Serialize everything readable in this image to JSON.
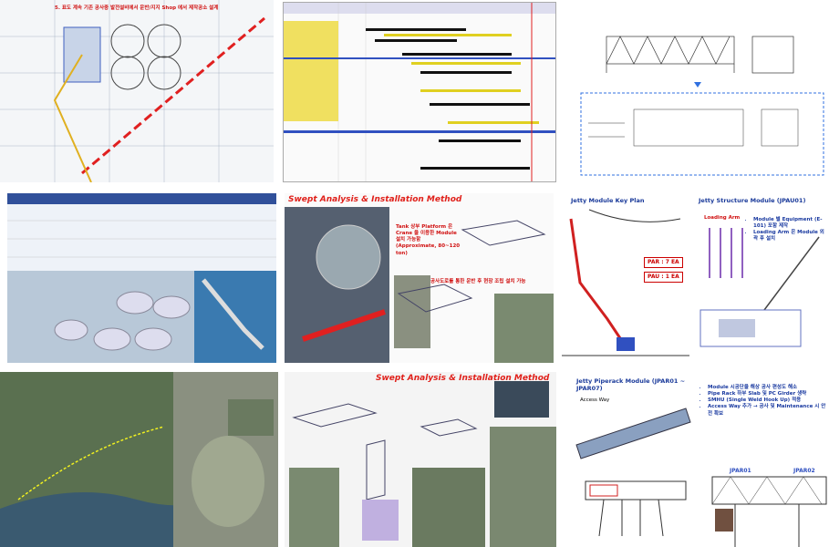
{
  "tiles": [
    {
      "note": "5. 표도 계속 기존 공사중 발전설비에서 운반/지지 Shop 에서 제작공소 설계"
    },
    {
      "title": "Swept Analysis & Installation Method",
      "notes": [
        "Tank 상부 Platform 은 Crane 을 이용한 Module 설치 가능함 (Approximate, 80~120 ton)",
        "공사도로를 통한 운반 후 현장 조립 설치 가능"
      ]
    },
    {
      "title": "Jetty Module Key Plan",
      "labels": [
        "PAR : 7 EA",
        "PAU : 1 EA"
      ]
    },
    {
      "title": "Jetty Structure Module (JPAU01)",
      "labels": [
        "Loading Arm"
      ],
      "notes": [
        "Module 별 Equipment (E-101) 포함 제작",
        "Loading Arm 은 Module 외곽 후 설치"
      ]
    },
    {
      "title": "Swept Analysis & Installation Method"
    },
    {
      "title": "Jetty Piperack Module (JPAR01 ~ JPAR07)",
      "labels": [
        "Access Way"
      ]
    },
    {
      "notes": [
        "Module 시공단을 해상 공사 편성도 해소",
        "Pipe Rack 하부 Slab 및 PC Girder 생략",
        "SMHU (Single Weld Hook Up) 적용",
        "Access Way 추가 → 공사 및 Maintenance 시 안전 확보"
      ],
      "labels": [
        "JPAR01",
        "JPAR02"
      ]
    }
  ]
}
